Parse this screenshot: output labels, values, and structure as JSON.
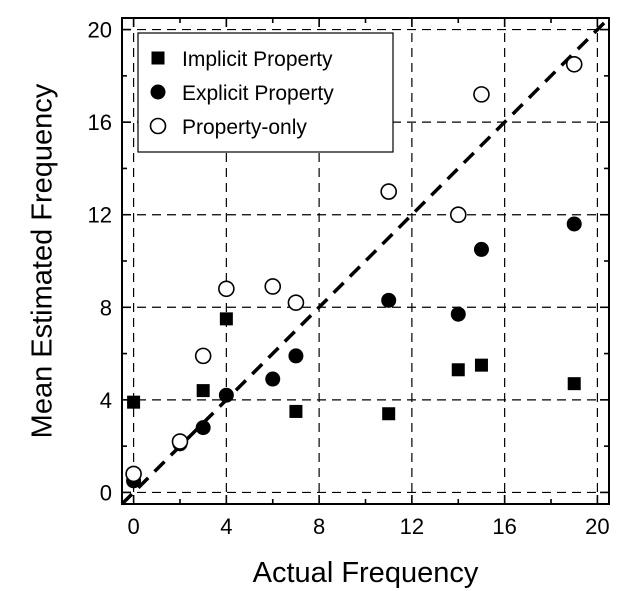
{
  "chart_data": {
    "type": "scatter",
    "xlabel": "Actual Frequency",
    "ylabel": "Mean Estimated Frequency",
    "xlim": [
      -0.5,
      20.5
    ],
    "ylim": [
      -0.5,
      20.5
    ],
    "xticks": [
      0,
      4,
      8,
      12,
      16,
      20
    ],
    "yticks": [
      0,
      4,
      8,
      12,
      16,
      20
    ],
    "grid": true,
    "legend_position": "top-left",
    "reference_line": {
      "style": "dashed",
      "from": [
        -0.5,
        -0.5
      ],
      "to": [
        20.5,
        20.5
      ]
    },
    "series": [
      {
        "name": "Implicit Property",
        "marker": "filled-square",
        "points": [
          [
            0,
            3.9
          ],
          [
            3,
            4.4
          ],
          [
            4,
            7.5
          ],
          [
            7,
            3.5
          ],
          [
            11,
            3.4
          ],
          [
            14,
            5.3
          ],
          [
            15,
            5.5
          ],
          [
            19,
            4.7
          ]
        ]
      },
      {
        "name": "Explicit Property",
        "marker": "filled-circle",
        "points": [
          [
            0,
            0.5
          ],
          [
            2,
            2.1
          ],
          [
            3,
            2.8
          ],
          [
            4,
            4.2
          ],
          [
            6,
            4.9
          ],
          [
            7,
            5.9
          ],
          [
            11,
            8.3
          ],
          [
            14,
            7.7
          ],
          [
            15,
            10.5
          ],
          [
            19,
            11.6
          ]
        ]
      },
      {
        "name": "Property-only",
        "marker": "open-circle",
        "points": [
          [
            0,
            0.8
          ],
          [
            2,
            2.2
          ],
          [
            3,
            5.9
          ],
          [
            4,
            8.8
          ],
          [
            6,
            8.9
          ],
          [
            7,
            8.2
          ],
          [
            11,
            13.0
          ],
          [
            14,
            12.0
          ],
          [
            15,
            17.2
          ],
          [
            19,
            18.5
          ]
        ]
      }
    ]
  }
}
